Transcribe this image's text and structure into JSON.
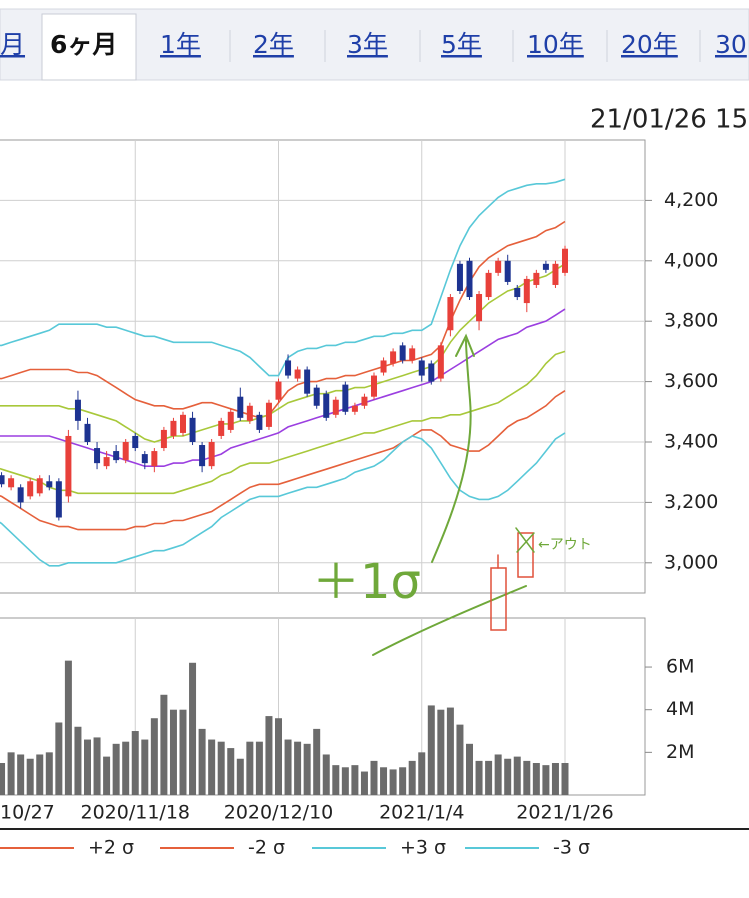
{
  "tabs": [
    "月",
    "6ヶ月",
    "1年",
    "2年",
    "3年",
    "5年",
    "10年",
    "20年",
    "30"
  ],
  "selected_tab": 1,
  "timestamp": "21/01/26 15",
  "chart_data": {
    "type": "candlestick",
    "categories": [
      "10/27",
      null,
      null,
      null,
      null,
      null,
      null,
      null,
      null,
      null,
      null,
      null,
      null,
      null,
      null,
      "2020/11/18",
      null,
      null,
      null,
      null,
      null,
      null,
      null,
      null,
      null,
      null,
      null,
      null,
      null,
      null,
      "2020/12/10",
      null,
      null,
      null,
      null,
      null,
      null,
      null,
      null,
      null,
      null,
      null,
      null,
      null,
      null,
      "2021/1/4",
      null,
      null,
      null,
      null,
      null,
      null,
      null,
      null,
      null,
      null,
      null,
      null,
      null,
      null,
      "2021/1/26"
    ],
    "ohlc": {
      "up_color": "#e8403a",
      "down_color": "#1d3391",
      "open": [
        3300,
        3290,
        3250,
        3250,
        3220,
        3230,
        3270,
        3270,
        3220,
        3540,
        3460,
        3380,
        3320,
        3370,
        3340,
        3420,
        3360,
        3320,
        3380,
        3420,
        3430,
        3480,
        3390,
        3320,
        3420,
        3440,
        3550,
        3470,
        3490,
        3450,
        3540,
        3670,
        3610,
        3640,
        3580,
        3560,
        3490,
        3590,
        3500,
        3520,
        3550,
        3630,
        3660,
        3720,
        3670,
        3670,
        3660,
        3610,
        3770,
        3990,
        4000,
        3800,
        3880,
        3960,
        4000,
        3910,
        3860,
        3920,
        3990,
        3920,
        3960
      ],
      "high": [
        3330,
        3300,
        3290,
        3260,
        3280,
        3290,
        3290,
        3280,
        3440,
        3570,
        3480,
        3400,
        3370,
        3390,
        3410,
        3430,
        3370,
        3380,
        3450,
        3480,
        3500,
        3500,
        3400,
        3410,
        3480,
        3510,
        3580,
        3530,
        3500,
        3540,
        3610,
        3690,
        3650,
        3650,
        3590,
        3570,
        3550,
        3600,
        3530,
        3560,
        3630,
        3680,
        3710,
        3730,
        3720,
        3680,
        3670,
        3730,
        3890,
        4000,
        4010,
        3900,
        3970,
        4010,
        4020,
        3920,
        3950,
        3970,
        4000,
        4000,
        4050
      ],
      "low": [
        3280,
        3250,
        3240,
        3180,
        3210,
        3220,
        3240,
        3140,
        3200,
        3440,
        3390,
        3310,
        3310,
        3330,
        3330,
        3370,
        3310,
        3300,
        3370,
        3410,
        3420,
        3390,
        3300,
        3310,
        3410,
        3430,
        3470,
        3460,
        3430,
        3440,
        3530,
        3610,
        3600,
        3550,
        3510,
        3470,
        3480,
        3490,
        3490,
        3510,
        3540,
        3620,
        3650,
        3660,
        3660,
        3600,
        3590,
        3600,
        3750,
        3890,
        3870,
        3770,
        3870,
        3950,
        3920,
        3870,
        3830,
        3910,
        3960,
        3910,
        3950
      ],
      "close": [
        3320,
        3260,
        3280,
        3200,
        3270,
        3280,
        3250,
        3150,
        3420,
        3470,
        3400,
        3330,
        3350,
        3340,
        3400,
        3380,
        3330,
        3370,
        3440,
        3470,
        3490,
        3400,
        3320,
        3400,
        3470,
        3500,
        3480,
        3520,
        3440,
        3530,
        3600,
        3620,
        3640,
        3560,
        3520,
        3480,
        3540,
        3500,
        3520,
        3550,
        3620,
        3670,
        3700,
        3670,
        3710,
        3620,
        3600,
        3720,
        3880,
        3900,
        3880,
        3890,
        3960,
        4000,
        3930,
        3880,
        3940,
        3960,
        3970,
        3990,
        4040
      ]
    },
    "series": [
      {
        "name": "+2 σ",
        "color": "#e5603b",
        "values": [
          3610,
          3610,
          3620,
          3630,
          3640,
          3640,
          3640,
          3640,
          3640,
          3630,
          3630,
          3620,
          3600,
          3580,
          3560,
          3540,
          3530,
          3520,
          3520,
          3510,
          3510,
          3520,
          3530,
          3530,
          3520,
          3510,
          3500,
          3490,
          3480,
          3490,
          3530,
          3570,
          3590,
          3600,
          3600,
          3610,
          3610,
          3620,
          3620,
          3630,
          3640,
          3650,
          3660,
          3670,
          3670,
          3680,
          3690,
          3720,
          3800,
          3870,
          3930,
          3980,
          4010,
          4030,
          4050,
          4060,
          4070,
          4080,
          4100,
          4110,
          4130
        ]
      },
      {
        "name": "-2 σ",
        "color": "#e5603b",
        "values": [
          3230,
          3220,
          3200,
          3180,
          3160,
          3140,
          3130,
          3120,
          3120,
          3110,
          3110,
          3110,
          3110,
          3110,
          3110,
          3120,
          3120,
          3130,
          3130,
          3140,
          3140,
          3150,
          3160,
          3170,
          3190,
          3210,
          3230,
          3250,
          3260,
          3260,
          3260,
          3270,
          3280,
          3290,
          3300,
          3310,
          3320,
          3330,
          3340,
          3350,
          3360,
          3370,
          3380,
          3400,
          3420,
          3440,
          3440,
          3420,
          3390,
          3380,
          3370,
          3370,
          3390,
          3420,
          3450,
          3470,
          3480,
          3500,
          3520,
          3550,
          3570
        ]
      },
      {
        "name": "+3 σ",
        "color": "#58c8d8",
        "values": [
          3720,
          3720,
          3730,
          3740,
          3750,
          3760,
          3770,
          3790,
          3790,
          3790,
          3790,
          3790,
          3780,
          3780,
          3770,
          3760,
          3750,
          3750,
          3740,
          3730,
          3730,
          3730,
          3730,
          3730,
          3720,
          3710,
          3700,
          3680,
          3650,
          3620,
          3620,
          3680,
          3700,
          3710,
          3710,
          3720,
          3720,
          3730,
          3730,
          3740,
          3750,
          3750,
          3760,
          3760,
          3770,
          3770,
          3790,
          3880,
          3970,
          4050,
          4110,
          4150,
          4180,
          4210,
          4230,
          4240,
          4250,
          4255,
          4255,
          4260,
          4270
        ]
      },
      {
        "name": "-3 σ",
        "color": "#58c8d8",
        "values": [
          3150,
          3130,
          3100,
          3070,
          3040,
          3010,
          2990,
          2990,
          3000,
          3000,
          3000,
          3000,
          3000,
          3000,
          3010,
          3020,
          3030,
          3040,
          3040,
          3050,
          3060,
          3080,
          3100,
          3120,
          3150,
          3170,
          3190,
          3210,
          3220,
          3220,
          3220,
          3230,
          3240,
          3250,
          3250,
          3260,
          3270,
          3280,
          3300,
          3310,
          3320,
          3340,
          3370,
          3400,
          3420,
          3410,
          3380,
          3330,
          3280,
          3240,
          3220,
          3210,
          3210,
          3220,
          3240,
          3270,
          3300,
          3330,
          3370,
          3410,
          3430
        ]
      },
      {
        "color": "#a8c83a",
        "values": [
          3520,
          3520,
          3520,
          3520,
          3520,
          3520,
          3520,
          3520,
          3510,
          3510,
          3500,
          3490,
          3480,
          3470,
          3450,
          3430,
          3410,
          3400,
          3410,
          3420,
          3420,
          3430,
          3440,
          3450,
          3460,
          3460,
          3470,
          3470,
          3480,
          3490,
          3510,
          3530,
          3540,
          3550,
          3560,
          3560,
          3570,
          3570,
          3580,
          3580,
          3590,
          3600,
          3610,
          3620,
          3630,
          3640,
          3650,
          3680,
          3730,
          3770,
          3800,
          3830,
          3860,
          3880,
          3900,
          3910,
          3930,
          3940,
          3950,
          3970,
          3990
        ]
      },
      {
        "color": "#9b3fe0",
        "values": [
          3420,
          3420,
          3420,
          3420,
          3420,
          3420,
          3420,
          3410,
          3400,
          3390,
          3380,
          3370,
          3360,
          3350,
          3340,
          3330,
          3320,
          3320,
          3320,
          3330,
          3330,
          3340,
          3340,
          3350,
          3360,
          3380,
          3390,
          3400,
          3410,
          3420,
          3430,
          3450,
          3460,
          3470,
          3480,
          3490,
          3500,
          3510,
          3520,
          3530,
          3540,
          3550,
          3560,
          3570,
          3580,
          3590,
          3600,
          3620,
          3640,
          3660,
          3680,
          3700,
          3720,
          3740,
          3750,
          3760,
          3780,
          3790,
          3800,
          3820,
          3840
        ]
      },
      {
        "color": "#a8c83a",
        "values": [
          3320,
          3310,
          3300,
          3290,
          3280,
          3270,
          3250,
          3240,
          3240,
          3230,
          3230,
          3230,
          3230,
          3230,
          3230,
          3230,
          3230,
          3230,
          3230,
          3230,
          3240,
          3250,
          3260,
          3270,
          3290,
          3300,
          3320,
          3330,
          3330,
          3330,
          3340,
          3350,
          3360,
          3370,
          3380,
          3390,
          3400,
          3410,
          3420,
          3430,
          3430,
          3440,
          3450,
          3460,
          3470,
          3470,
          3480,
          3480,
          3490,
          3490,
          3500,
          3510,
          3520,
          3530,
          3550,
          3570,
          3590,
          3620,
          3660,
          3690,
          3700
        ]
      }
    ],
    "ylim": [
      2900,
      4400
    ],
    "yticks": [
      {
        "value": 3000,
        "label": "3,000"
      },
      {
        "value": 3200,
        "label": "3,200"
      },
      {
        "value": 3400,
        "label": "3,400"
      },
      {
        "value": 3600,
        "label": "3,600"
      },
      {
        "value": 3800,
        "label": "3,800"
      },
      {
        "value": 4000,
        "label": "4,000"
      },
      {
        "value": 4200,
        "label": "4,200"
      }
    ],
    "grid": true,
    "volume": {
      "color": "#6b6b6b",
      "values": [
        2500000,
        1500000,
        2000000,
        1900000,
        1700000,
        1900000,
        2000000,
        3400000,
        6300000,
        3200000,
        2600000,
        2700000,
        1800000,
        2400000,
        2500000,
        3000000,
        2600000,
        3600000,
        4700000,
        4000000,
        4000000,
        6200000,
        3100000,
        2600000,
        2500000,
        2200000,
        1700000,
        2500000,
        2500000,
        3700000,
        3600000,
        2600000,
        2500000,
        2400000,
        3100000,
        1900000,
        1400000,
        1300000,
        1400000,
        1100000,
        1600000,
        1300000,
        1200000,
        1300000,
        1600000,
        2000000,
        4200000,
        4000000,
        4100000,
        3300000,
        2400000,
        1600000,
        1600000,
        1900000,
        1700000,
        1800000,
        1600000,
        1500000,
        1400000,
        1500000,
        1500000
      ],
      "ylim": [
        0,
        8300000
      ],
      "yticks": [
        {
          "value": 2000000,
          "label": "2M"
        },
        {
          "value": 4000000,
          "label": "4M"
        },
        {
          "value": 6000000,
          "label": "6M"
        }
      ]
    },
    "annotations": [
      "＋1σ",
      "←アウト"
    ]
  }
}
